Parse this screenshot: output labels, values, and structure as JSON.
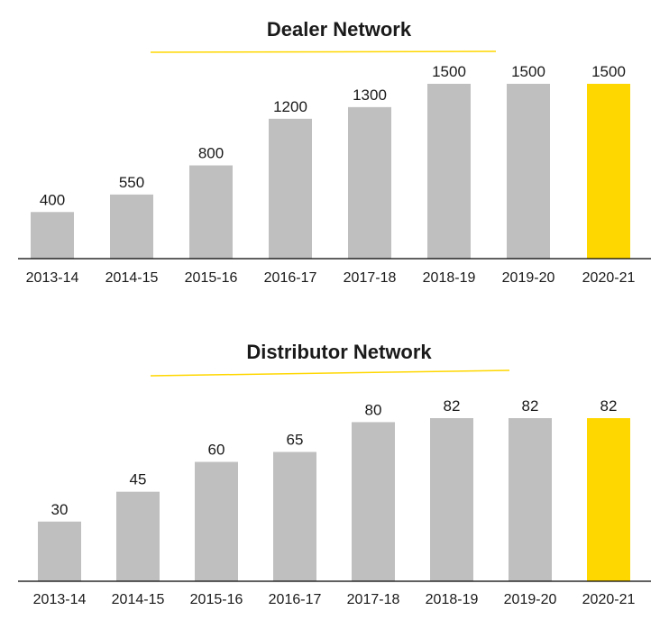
{
  "colors": {
    "bar": "#bfbfbf",
    "highlight": "#ffd700",
    "axis": "#000000",
    "accent_line": "#ffd700"
  },
  "chart_data": [
    {
      "type": "bar",
      "title": "Dealer Network",
      "categories": [
        "2013-14",
        "2014-15",
        "2015-16",
        "2016-17",
        "2017-18",
        "2018-19",
        "2019-20",
        "2020-21"
      ],
      "values": [
        400,
        550,
        800,
        1200,
        1300,
        1500,
        1500,
        1500
      ],
      "value_labels": [
        "400",
        "550",
        "800",
        "1200",
        "1300",
        "1500",
        "1500",
        "1500"
      ],
      "highlight_index": 7,
      "ylim": [
        0,
        1500
      ],
      "xlabel": "",
      "ylabel": "",
      "grid": false,
      "legend": "none"
    },
    {
      "type": "bar",
      "title": "Distributor Network",
      "categories": [
        "2013-14",
        "2014-15",
        "2015-16",
        "2016-17",
        "2017-18",
        "2018-19",
        "2019-20",
        "2020-21"
      ],
      "values": [
        30,
        45,
        60,
        65,
        80,
        82,
        82,
        82
      ],
      "value_labels": [
        "30",
        "45",
        "60",
        "65",
        "80",
        "82",
        "82",
        "82"
      ],
      "highlight_index": 7,
      "ylim": [
        0,
        82
      ],
      "xlabel": "",
      "ylabel": "",
      "grid": false,
      "legend": "none"
    }
  ]
}
